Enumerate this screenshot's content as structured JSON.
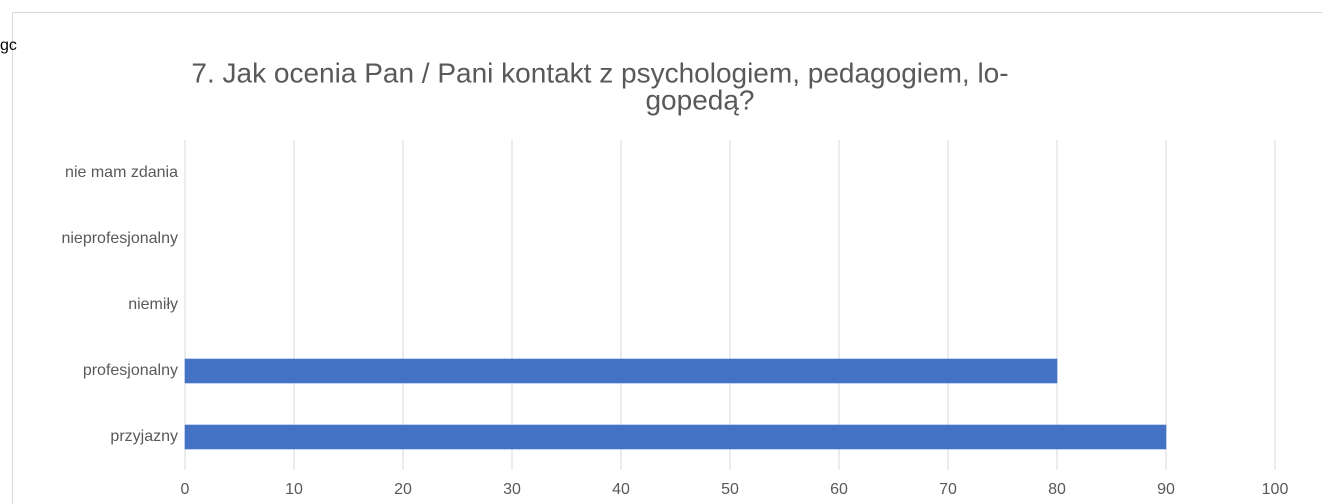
{
  "page_fragment": "gc",
  "chart_data": {
    "type": "hbar",
    "title": [
      "7. Jak ocenia Pan / Pani kontakt z psychologiem, pedagogiem, lo-",
      "gopedą?"
    ],
    "categories": [
      "przyjazny",
      "profesjonalny",
      "niemiły",
      "nieprofesjonalny",
      "nie mam zdania"
    ],
    "values": [
      90,
      80,
      0,
      0,
      0
    ],
    "color": "#4472c4",
    "xlim": [
      0,
      100
    ],
    "xticks": [
      0,
      10,
      20,
      30,
      40,
      50,
      60,
      70,
      80,
      90,
      100
    ],
    "grid": true
  }
}
